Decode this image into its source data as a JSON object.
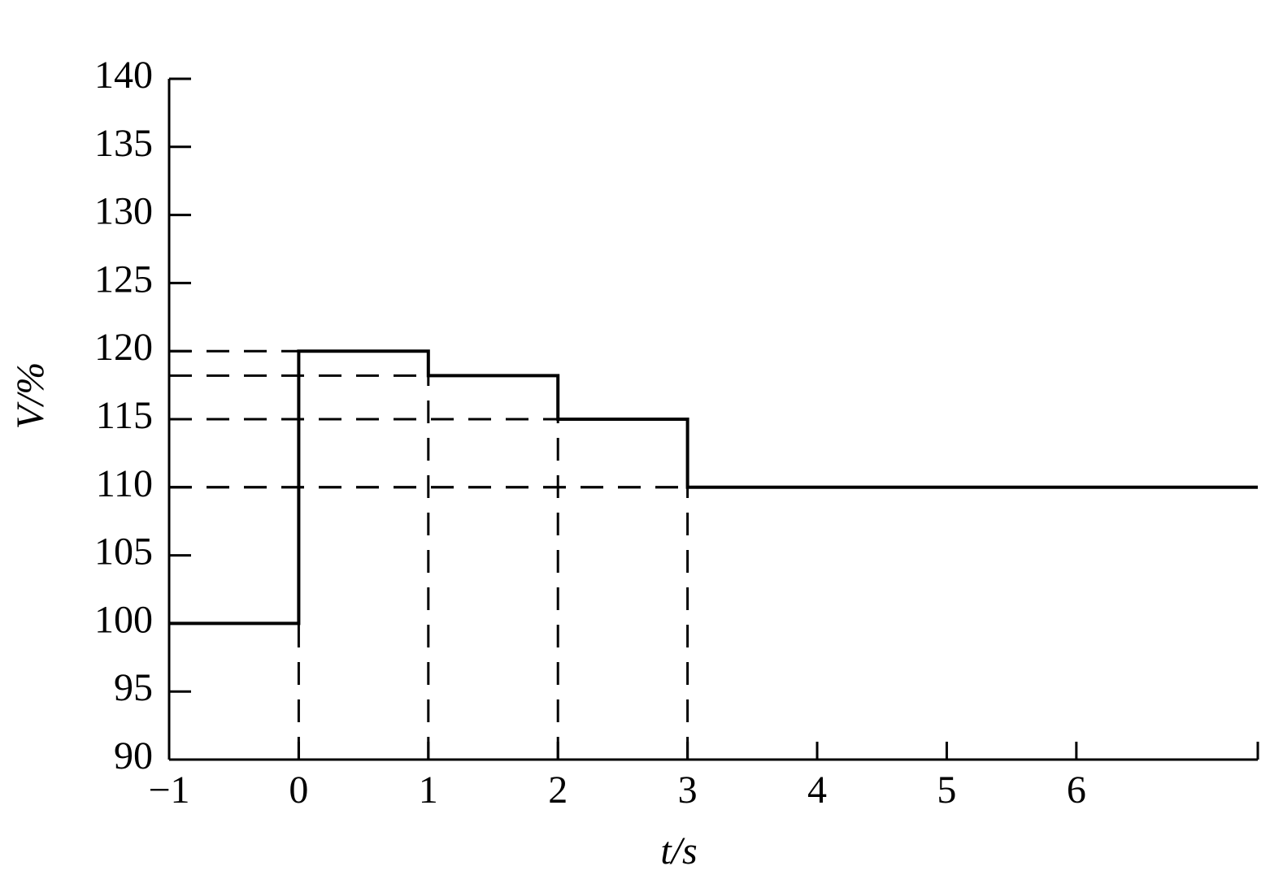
{
  "chart_data": {
    "type": "step-line",
    "x_label": "t/s",
    "y_label": "V/%",
    "series": [
      {
        "color": "#000000",
        "x": [
          -1,
          0,
          0,
          1,
          1,
          2,
          2,
          3,
          3,
          7.4
        ],
        "values": [
          100,
          100,
          120,
          120,
          118.2,
          118.2,
          115,
          115,
          110,
          110
        ]
      }
    ],
    "xlim": [
      -1,
      7.4
    ],
    "xticks": [
      {
        "value": -1,
        "label": "−1"
      },
      0,
      1,
      2,
      3,
      4,
      5,
      6
    ],
    "ylim": [
      90,
      140
    ],
    "yticks": [
      90,
      95,
      100,
      105,
      110,
      115,
      120,
      125,
      130,
      135,
      140
    ]
  }
}
